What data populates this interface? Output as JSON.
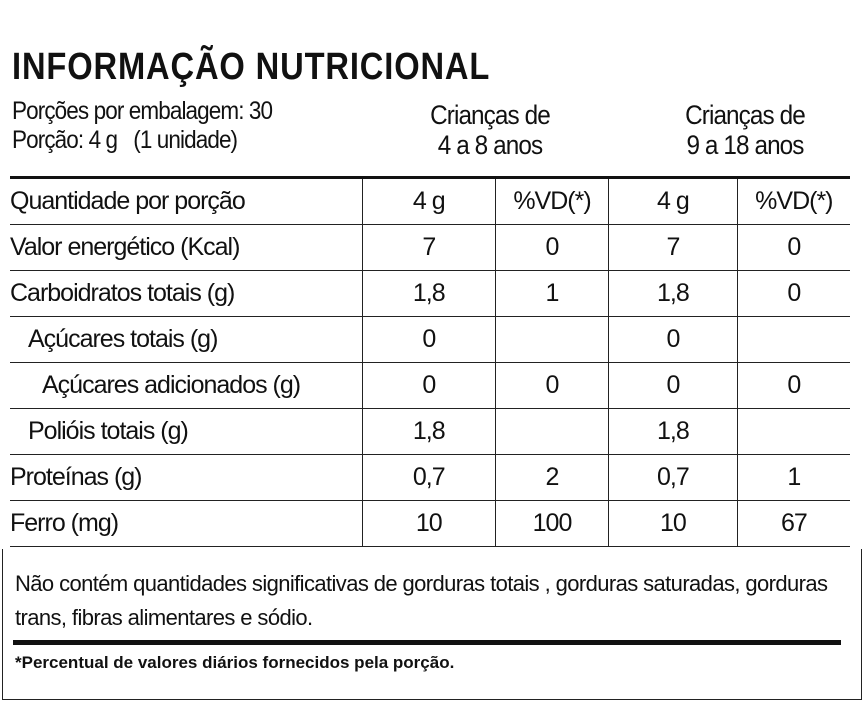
{
  "header": {
    "title": "INFORMAÇÃO NUTRICIONAL",
    "servings_per_package": "Porções por embalagem: 30",
    "serving": "Porção: 4 g   (1 unidade)",
    "groups": [
      [
        "Crianças de",
        "4 a 8 anos"
      ],
      [
        "Crianças de",
        "9 a 18 anos"
      ]
    ]
  },
  "table": {
    "header": [
      "Quantidade por porção",
      "4 g",
      "%VD(*)",
      "4 g",
      "%VD(*)"
    ],
    "rows": [
      [
        "Valor energético (Kcal)",
        "7",
        "0",
        "7",
        "0"
      ],
      [
        "Carboidratos totais (g)",
        "1,8",
        "1",
        "1,8",
        "0"
      ],
      [
        "Açúcares totais (g)",
        "0",
        null,
        "0",
        null
      ],
      [
        "Açúcares adicionados (g)",
        "0",
        "0",
        "0",
        "0"
      ],
      [
        "Polióis totais (g)",
        "1,8",
        null,
        "1,8",
        null
      ],
      [
        "Proteínas (g)",
        "0,7",
        "2",
        "0,7",
        "1"
      ],
      [
        "Ferro (mg)",
        "10",
        "100",
        "10",
        "67"
      ]
    ]
  },
  "notes": {
    "statement": "Não  contém quantidades  significativas de gorduras totais , gorduras saturadas, gorduras trans, fibras alimentares e sódio.",
    "footnote": "*Percentual de valores diários fornecidos pela porção."
  }
}
